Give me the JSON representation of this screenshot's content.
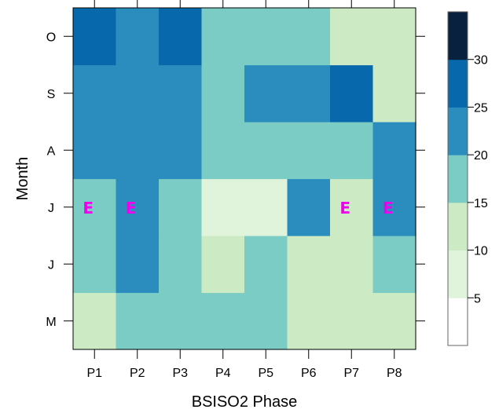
{
  "chart_data": {
    "type": "heatmap",
    "title": "",
    "xlabel": "BSISO2 Phase",
    "ylabel": "Month",
    "x_categories": [
      "P1",
      "P2",
      "P3",
      "P4",
      "P5",
      "P6",
      "P7",
      "P8"
    ],
    "y_categories": [
      "M",
      "J",
      "J",
      "A",
      "S",
      "O"
    ],
    "values": [
      [
        12,
        17,
        17,
        17,
        17,
        12,
        12,
        12
      ],
      [
        17,
        22,
        17,
        12,
        17,
        12,
        12,
        17
      ],
      [
        17,
        22,
        17,
        7,
        7,
        22,
        12,
        22
      ],
      [
        22,
        22,
        22,
        17,
        17,
        17,
        17,
        22
      ],
      [
        22,
        22,
        22,
        17,
        22,
        22,
        27,
        12
      ],
      [
        27,
        22,
        27,
        17,
        17,
        17,
        12,
        12
      ]
    ],
    "colorbar": {
      "boundaries": [
        0,
        5,
        10,
        15,
        20,
        25,
        30,
        35
      ],
      "tick_labels": [
        "5",
        "10",
        "15",
        "20",
        "25",
        "30"
      ],
      "colors": [
        "#ffffff",
        "#e0f3db",
        "#ccebc5",
        "#7bccc4",
        "#2b8cbe",
        "#0868ac",
        "#08213f"
      ]
    },
    "annotations": [
      {
        "text": "E",
        "x": "P1",
        "row": 2,
        "color": "#ee00ee"
      },
      {
        "text": "E",
        "x": "P2",
        "row": 2,
        "color": "#ee00ee"
      },
      {
        "text": "E",
        "x": "P7",
        "row": 2,
        "color": "#ee00ee"
      },
      {
        "text": "E",
        "x": "P8",
        "row": 2,
        "color": "#ee00ee"
      }
    ]
  }
}
